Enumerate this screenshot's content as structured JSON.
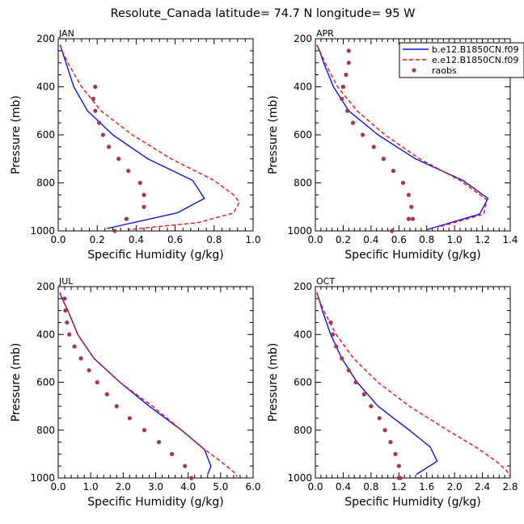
{
  "title": "Resolute_Canada   latitude= 74.7 N longitude= 95 W",
  "colors": {
    "model1": "#1010e0",
    "model2": "#e81010",
    "obs": "#a8325a",
    "axis": "#000000"
  },
  "chart_data": [
    {
      "type": "line",
      "panel": "JAN",
      "xlabel": "Specific Humidity (g/kg)",
      "ylabel": "Pressure (mb)",
      "xlim": [
        0,
        1.0
      ],
      "ylim": [
        1000,
        200
      ],
      "xticks": [
        0,
        0.2,
        0.4,
        0.6,
        0.8,
        1.0
      ],
      "xtick_labels": [
        "0.0",
        "0.2",
        "0.4",
        "0.6",
        "0.8",
        "1.0"
      ],
      "yticks": [
        200,
        400,
        600,
        800,
        1000
      ],
      "ytick_labels": [
        "200",
        "400",
        "600",
        "800",
        "1000"
      ],
      "series": [
        {
          "name": "b.e12.B1850CN.f09",
          "style": "solid",
          "x": [
            0.01,
            0.02,
            0.04,
            0.08,
            0.15,
            0.28,
            0.46,
            0.69,
            0.75,
            0.61,
            0.25
          ],
          "y": [
            225,
            250,
            300,
            400,
            500,
            600,
            700,
            790,
            865,
            925,
            990
          ]
        },
        {
          "name": "e.e12.B1850CN.f09",
          "style": "dashed",
          "x": [
            0.01,
            0.02,
            0.05,
            0.12,
            0.22,
            0.38,
            0.58,
            0.8,
            0.9,
            0.93,
            0.9,
            0.72,
            0.36
          ],
          "y": [
            225,
            250,
            300,
            400,
            500,
            600,
            700,
            790,
            850,
            880,
            925,
            965,
            995
          ]
        },
        {
          "name": "raobs",
          "style": "points",
          "x": [
            0.19,
            0.18,
            0.19,
            0.21,
            0.23,
            0.26,
            0.31,
            0.36,
            0.42,
            0.44,
            0.44,
            0.35,
            0.29
          ],
          "y": [
            400,
            450,
            500,
            550,
            600,
            650,
            700,
            750,
            800,
            850,
            900,
            950,
            1000
          ]
        }
      ]
    },
    {
      "type": "line",
      "panel": "APR",
      "xlabel": "Specific Humidity (g/kg)",
      "ylabel": "Pressure (mb)",
      "xlim": [
        0,
        1.4
      ],
      "ylim": [
        1000,
        200
      ],
      "xticks": [
        0,
        0.2,
        0.4,
        0.6,
        0.8,
        1.0,
        1.2,
        1.4
      ],
      "xtick_labels": [
        "0.0",
        "0.2",
        "0.4",
        "0.6",
        "0.8",
        "1.0",
        "1.2",
        "1.4"
      ],
      "yticks": [
        200,
        400,
        600,
        800,
        1000
      ],
      "ytick_labels": [
        "200",
        "400",
        "600",
        "800",
        "1000"
      ],
      "legend": "top-right",
      "series": [
        {
          "name": "b.e12.B1850CN.f09",
          "style": "solid",
          "x": [
            0.01,
            0.03,
            0.06,
            0.13,
            0.24,
            0.45,
            0.72,
            1.06,
            1.24,
            1.18,
            0.8
          ],
          "y": [
            225,
            250,
            300,
            400,
            500,
            600,
            700,
            790,
            865,
            930,
            995
          ]
        },
        {
          "name": "e.e12.B1850CN.f09",
          "style": "dashed",
          "x": [
            0.01,
            0.03,
            0.07,
            0.16,
            0.3,
            0.5,
            0.75,
            1.04,
            1.23,
            1.21,
            0.88
          ],
          "y": [
            225,
            250,
            300,
            400,
            500,
            600,
            700,
            790,
            870,
            930,
            985
          ]
        },
        {
          "name": "raobs",
          "style": "points",
          "x": [
            0.24,
            0.24,
            0.22,
            0.2,
            0.19,
            0.23,
            0.27,
            0.34,
            0.42,
            0.49,
            0.56,
            0.63,
            0.67,
            0.69,
            0.7,
            0.67,
            0.55
          ],
          "y": [
            250,
            300,
            350,
            400,
            450,
            500,
            550,
            600,
            650,
            700,
            750,
            800,
            850,
            900,
            950,
            950,
            1000
          ]
        }
      ]
    },
    {
      "type": "line",
      "panel": "JUL",
      "xlabel": "Specific Humidity (g/kg)",
      "ylabel": "Pressure (mb)",
      "xlim": [
        0,
        6.0
      ],
      "ylim": [
        1000,
        200
      ],
      "xticks": [
        0,
        1,
        2,
        3,
        4,
        5,
        6
      ],
      "xtick_labels": [
        "0.0",
        "1.0",
        "2.0",
        "3.0",
        "4.0",
        "5.0",
        "6.0"
      ],
      "yticks": [
        200,
        400,
        600,
        800,
        1000
      ],
      "ytick_labels": [
        "200",
        "400",
        "600",
        "800",
        "1000"
      ],
      "series": [
        {
          "name": "b.e12.B1850CN.f09",
          "style": "solid",
          "x": [
            0.05,
            0.12,
            0.3,
            0.6,
            1.1,
            1.9,
            2.8,
            3.8,
            4.5,
            4.7,
            4.6
          ],
          "y": [
            225,
            250,
            300,
            400,
            500,
            600,
            700,
            800,
            880,
            950,
            985
          ]
        },
        {
          "name": "e.e12.B1850CN.f09",
          "style": "dashed",
          "x": [
            0.05,
            0.12,
            0.3,
            0.6,
            1.1,
            1.9,
            2.9,
            3.8,
            4.4,
            5.0,
            5.45,
            5.5
          ],
          "y": [
            225,
            250,
            300,
            400,
            500,
            600,
            700,
            800,
            870,
            930,
            980,
            995
          ]
        },
        {
          "name": "raobs",
          "style": "points",
          "x": [
            0.2,
            0.22,
            0.27,
            0.34,
            0.5,
            0.7,
            0.95,
            1.2,
            1.5,
            1.8,
            2.2,
            2.65,
            3.1,
            3.5,
            3.9,
            4.1
          ],
          "y": [
            250,
            300,
            350,
            400,
            450,
            500,
            550,
            600,
            650,
            700,
            750,
            800,
            850,
            900,
            950,
            1000
          ]
        }
      ]
    },
    {
      "type": "line",
      "panel": "OCT",
      "xlabel": "Specific Humidity (g/kg)",
      "ylabel": "Pressure (mb)",
      "xlim": [
        0,
        2.8
      ],
      "ylim": [
        1000,
        200
      ],
      "xticks": [
        0,
        0.4,
        0.8,
        1.2,
        1.6,
        2.0,
        2.4,
        2.8
      ],
      "xtick_labels": [
        "0.0",
        "0.4",
        "0.8",
        "1.2",
        "1.6",
        "2.0",
        "2.4",
        "2.8"
      ],
      "yticks": [
        200,
        400,
        600,
        800,
        1000
      ],
      "ytick_labels": [
        "200",
        "400",
        "600",
        "800",
        "1000"
      ],
      "series": [
        {
          "name": "b.e12.B1850CN.f09",
          "style": "solid",
          "x": [
            0.02,
            0.05,
            0.1,
            0.22,
            0.38,
            0.6,
            0.9,
            1.35,
            1.65,
            1.75,
            1.45
          ],
          "y": [
            225,
            250,
            300,
            400,
            500,
            600,
            700,
            800,
            870,
            930,
            985
          ]
        },
        {
          "name": "e.e12.B1850CN.f09",
          "style": "dashed",
          "x": [
            0.02,
            0.05,
            0.12,
            0.3,
            0.55,
            0.9,
            1.35,
            1.9,
            2.3,
            2.6,
            2.75,
            2.8
          ],
          "y": [
            225,
            250,
            300,
            400,
            500,
            600,
            700,
            800,
            870,
            930,
            970,
            995
          ]
        },
        {
          "name": "raobs",
          "style": "points",
          "x": [
            0.22,
            0.25,
            0.3,
            0.38,
            0.48,
            0.58,
            0.7,
            0.8,
            0.92,
            1.0,
            1.08,
            1.15,
            1.2,
            1.22,
            1.2
          ],
          "y": [
            350,
            400,
            450,
            500,
            550,
            600,
            650,
            700,
            750,
            800,
            850,
            900,
            950,
            1000,
            1000
          ]
        }
      ]
    }
  ]
}
